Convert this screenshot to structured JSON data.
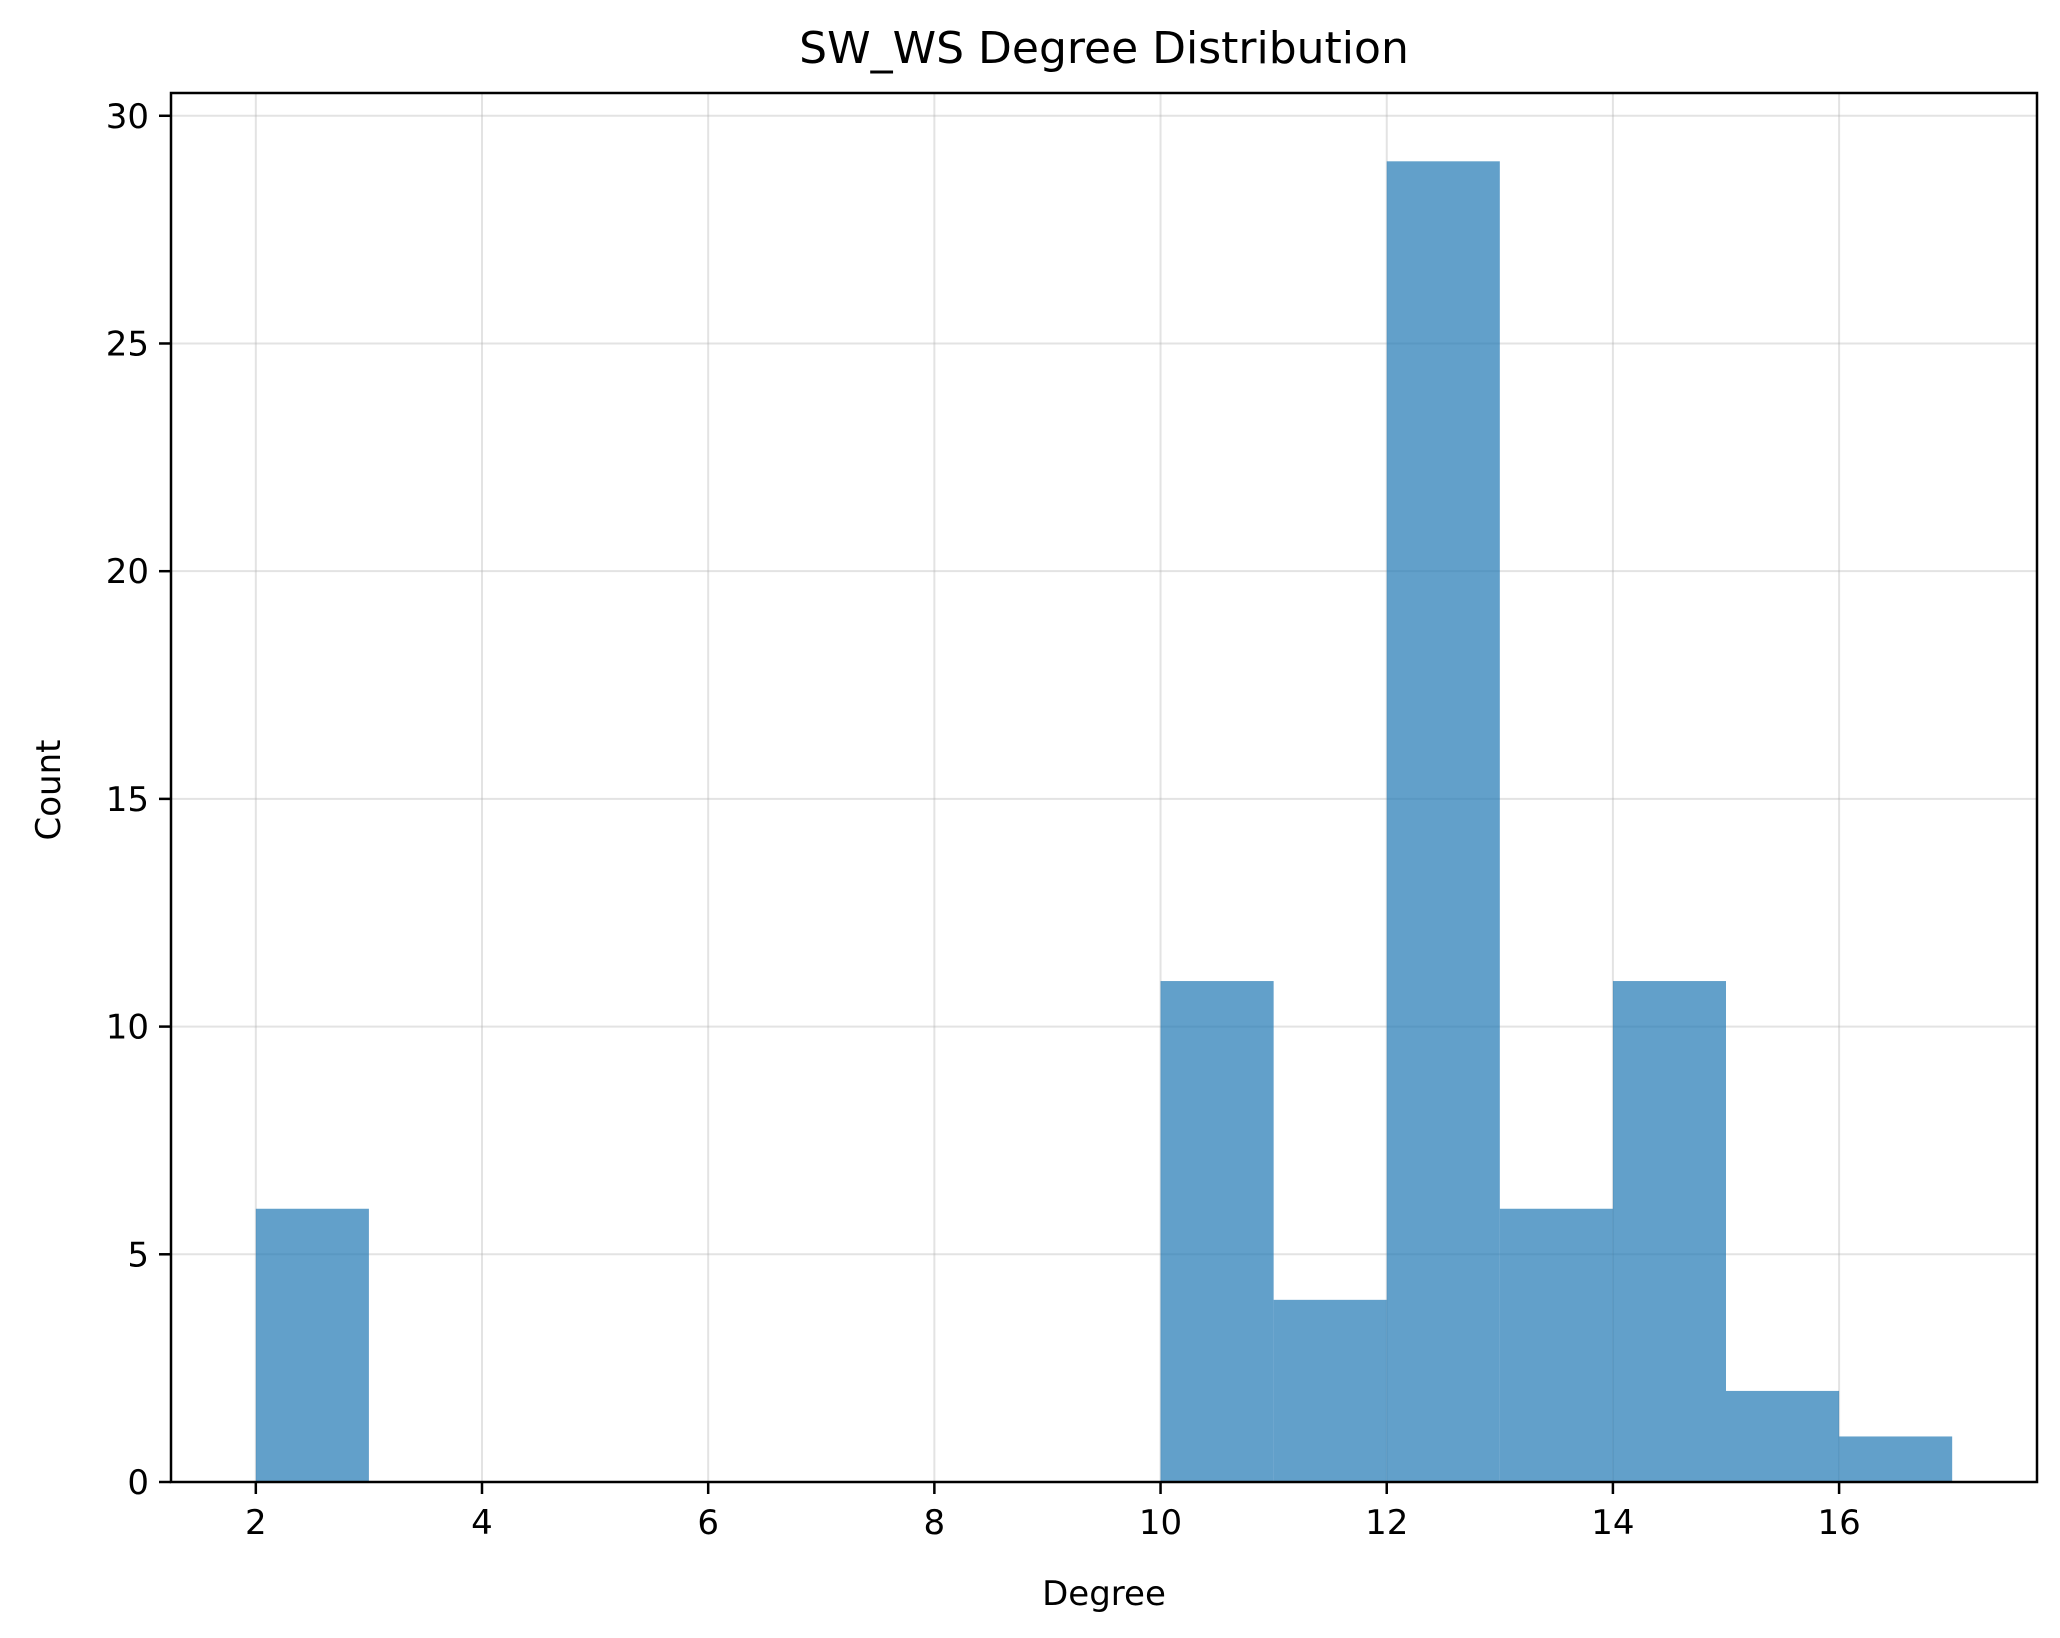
{
  "chart_data": {
    "type": "bar",
    "title": "SW_WS Degree Distribution",
    "xlabel": "Degree",
    "ylabel": "Count",
    "xlim": [
      1.25,
      17.75
    ],
    "ylim": [
      0,
      30.5
    ],
    "xticks": [
      2,
      4,
      6,
      8,
      10,
      12,
      14,
      16
    ],
    "yticks": [
      0,
      5,
      10,
      15,
      20,
      25,
      30
    ],
    "grid": true,
    "bar_color": "#1f77b4",
    "bins": [
      {
        "start": 2,
        "end": 3,
        "value": 6
      },
      {
        "start": 3,
        "end": 4,
        "value": 0
      },
      {
        "start": 4,
        "end": 5,
        "value": 0
      },
      {
        "start": 5,
        "end": 6,
        "value": 0
      },
      {
        "start": 6,
        "end": 7,
        "value": 0
      },
      {
        "start": 7,
        "end": 8,
        "value": 0
      },
      {
        "start": 8,
        "end": 9,
        "value": 0
      },
      {
        "start": 9,
        "end": 10,
        "value": 0
      },
      {
        "start": 10,
        "end": 11,
        "value": 11
      },
      {
        "start": 11,
        "end": 12,
        "value": 4
      },
      {
        "start": 12,
        "end": 13,
        "value": 29
      },
      {
        "start": 13,
        "end": 14,
        "value": 6
      },
      {
        "start": 14,
        "end": 15,
        "value": 11
      },
      {
        "start": 15,
        "end": 16,
        "value": 2
      },
      {
        "start": 16,
        "end": 17,
        "value": 1
      }
    ]
  }
}
